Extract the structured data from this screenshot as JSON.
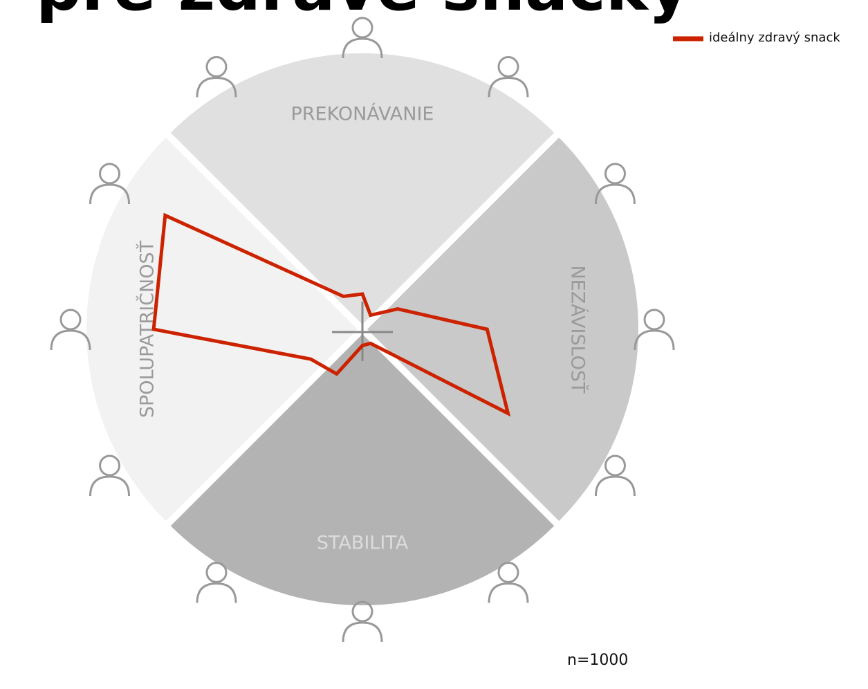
{
  "chart_data": {
    "type": "radar",
    "title": "pre zdravé snacky",
    "categories": [
      null,
      null,
      null,
      null,
      null,
      null,
      null,
      null,
      null,
      null,
      null,
      null
    ],
    "series": [
      {
        "name": "ideálny zdravý snack",
        "color": "#cc2200",
        "values": [
          13,
          6,
          15,
          46,
          62,
          6,
          6,
          19,
          22,
          77,
          84,
          14
        ]
      }
    ],
    "ylim": [
      0,
      100
    ],
    "sectors": [
      {
        "label": "PREKONÁVANIE",
        "color": "#e0e0e0"
      },
      {
        "label": "NEZÁVISLOSŤ",
        "color": "#c9c9c9"
      },
      {
        "label": "STABILITA",
        "color": "#b3b3b3"
      },
      {
        "label": "SPOLUPATRIČNOSŤ",
        "color": "#f2f2f2"
      }
    ],
    "legend": "top-right",
    "annotation": "n=1000"
  }
}
